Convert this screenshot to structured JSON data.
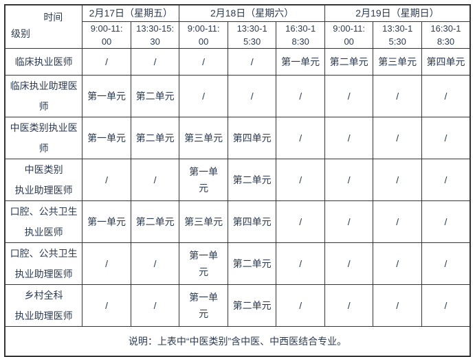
{
  "schedule": {
    "corner": {
      "top_right": "时间",
      "bottom_left": "级别"
    },
    "date_groups": [
      {
        "label": "2月17日（星期五）",
        "colspan": 2
      },
      {
        "label": "2月18日（星期六）",
        "colspan": 3
      },
      {
        "label": "2月19日（星期日）",
        "colspan": 3
      }
    ],
    "time_slots": [
      "9:00-11:\n00",
      "13:30-15:\n30",
      "9:00-11:\n00",
      "13:30-1\n5:30",
      "16:30-1\n8:30",
      "9:00-11:\n00",
      "13:30-1\n5:30",
      "16:30-1\n8:30"
    ],
    "rows": [
      {
        "label": "临床执业医师",
        "cells": [
          "/",
          "/",
          "/",
          "/",
          "第一单元",
          "第二单元",
          "第三单元",
          "第四单元"
        ]
      },
      {
        "label": "临床执业助理医师",
        "cells": [
          "第一单元",
          "第二单元",
          "/",
          "/",
          "/",
          "/",
          "/",
          "/"
        ]
      },
      {
        "label": "中医类别执业医师",
        "cells": [
          "第一单元",
          "第二单元",
          "第三单元",
          "第四单元",
          "/",
          "/",
          "/",
          "/"
        ]
      },
      {
        "label": "中医类别\n执业助理医师",
        "cells": [
          "/",
          "/",
          "第一单\n元",
          "第二单元",
          "/",
          "/",
          "/",
          "/"
        ]
      },
      {
        "label": "口腔、公共卫生\n执业医师",
        "cells": [
          "第一单元",
          "第二单元",
          "第三单元",
          "第四单元",
          "/",
          "/",
          "/",
          "/"
        ]
      },
      {
        "label": "口腔、公共卫生\n执业助理医师",
        "cells": [
          "/",
          "/",
          "第一单\n元",
          "第二单元",
          "/",
          "/",
          "/",
          "/"
        ]
      },
      {
        "label": "乡村全科\n执业助理医师",
        "cells": [
          "/",
          "/",
          "第一单\n元",
          "第二单元",
          "/",
          "/",
          "/",
          "/"
        ]
      }
    ],
    "footer": "说明：上表中“中医类别”含中医、中西医结合专业。",
    "colors": {
      "text": "#2b3a52",
      "border": "#333333",
      "background": "#ffffff"
    }
  }
}
